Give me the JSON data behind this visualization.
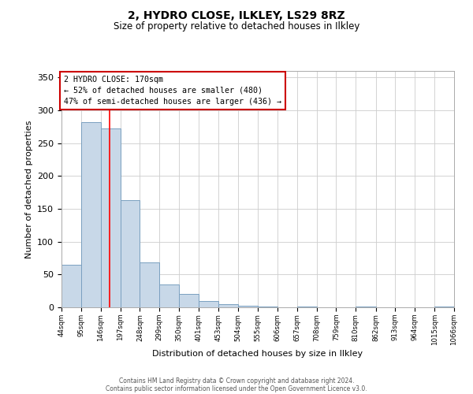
{
  "title": "2, HYDRO CLOSE, ILKLEY, LS29 8RZ",
  "subtitle": "Size of property relative to detached houses in Ilkley",
  "xlabel": "Distribution of detached houses by size in Ilkley",
  "ylabel": "Number of detached properties",
  "bar_color": "#c8d8e8",
  "bar_edge_color": "#7aa0c0",
  "background_color": "#ffffff",
  "grid_color": "#cccccc",
  "red_line_x": 170,
  "annotation_line1": "2 HYDRO CLOSE: 170sqm",
  "annotation_line2": "← 52% of detached houses are smaller (480)",
  "annotation_line3": "47% of semi-detached houses are larger (436) →",
  "annotation_box_color": "#ffffff",
  "annotation_box_edge_color": "#cc0000",
  "footer_line1": "Contains HM Land Registry data © Crown copyright and database right 2024.",
  "footer_line2": "Contains public sector information licensed under the Open Government Licence v3.0.",
  "bin_edges": [
    44,
    95,
    146,
    197,
    248,
    299,
    350,
    401,
    453,
    504,
    555,
    606,
    657,
    708,
    759,
    810,
    862,
    913,
    964,
    1015,
    1066
  ],
  "bin_labels": [
    "44sqm",
    "95sqm",
    "146sqm",
    "197sqm",
    "248sqm",
    "299sqm",
    "350sqm",
    "401sqm",
    "453sqm",
    "504sqm",
    "555sqm",
    "606sqm",
    "657sqm",
    "708sqm",
    "759sqm",
    "810sqm",
    "862sqm",
    "913sqm",
    "964sqm",
    "1015sqm",
    "1066sqm"
  ],
  "counts": [
    65,
    282,
    272,
    163,
    68,
    35,
    21,
    10,
    5,
    2,
    1,
    0,
    1,
    0,
    0,
    1,
    0,
    0,
    0,
    1
  ],
  "ylim": [
    0,
    360
  ],
  "yticks": [
    0,
    50,
    100,
    150,
    200,
    250,
    300,
    350
  ]
}
